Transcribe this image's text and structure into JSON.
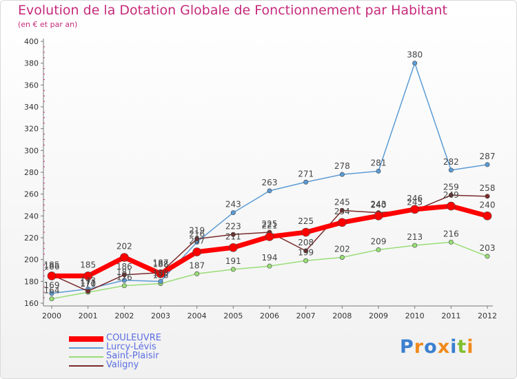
{
  "title": "Evolution de la Dotation Globale de Fonctionnement par Habitant",
  "subtitle": "(en € et par an)",
  "logo": "Proxiti",
  "chart_data": {
    "type": "line",
    "categories": [
      "2000",
      "2001",
      "2002",
      "2003",
      "2004",
      "2005",
      "2006",
      "2007",
      "2008",
      "2009",
      "2010",
      "2011",
      "2012"
    ],
    "ylim": [
      160,
      400
    ],
    "yticks": [
      160,
      180,
      200,
      220,
      240,
      260,
      280,
      300,
      320,
      340,
      360,
      380,
      400
    ],
    "grid": false,
    "legend": "bottom-left",
    "series": [
      {
        "name": "COULEUVRE",
        "color": "#ff0000",
        "values": [
          185,
          185,
          202,
          187,
          207,
          211,
          221,
          225,
          234,
          240,
          246,
          249,
          240
        ]
      },
      {
        "name": "Lurcy-Lévis",
        "color": "#5b9bd5",
        "values": [
          169,
          173,
          181,
          180,
          216,
          243,
          263,
          271,
          278,
          281,
          380,
          282,
          287
        ]
      },
      {
        "name": "Saint-Plaisir",
        "color": "#99dd77",
        "values": [
          164,
          170,
          176,
          178,
          187,
          191,
          194,
          199,
          202,
          209,
          213,
          216,
          203
        ]
      },
      {
        "name": "Valigny",
        "color": "#7a2a2a",
        "values": [
          186,
          171,
          186,
          188,
          219,
          223,
          225,
          208,
          245,
          243,
          245,
          259,
          258
        ]
      }
    ],
    "data_labels": {
      "COULEUVRE": [
        "185",
        "185",
        "202",
        "187",
        "207",
        "211",
        "221",
        "225",
        "234",
        "240",
        "246",
        "249",
        "240"
      ],
      "Lurcy-Lévis": [
        "169",
        "173",
        "181",
        "180",
        "216",
        "243",
        "263",
        "271",
        "278",
        "281",
        "380",
        "282",
        "287"
      ],
      "Saint-Plaisir": [
        "164",
        "170",
        "176",
        "178",
        "187",
        "191",
        "194",
        "199",
        "202",
        "209",
        "213",
        "216",
        "203"
      ],
      "Valigny": [
        "186",
        "171",
        "186",
        "188",
        "219",
        "223",
        "225",
        "208",
        "245",
        "243",
        "245",
        "259",
        "258"
      ]
    }
  }
}
